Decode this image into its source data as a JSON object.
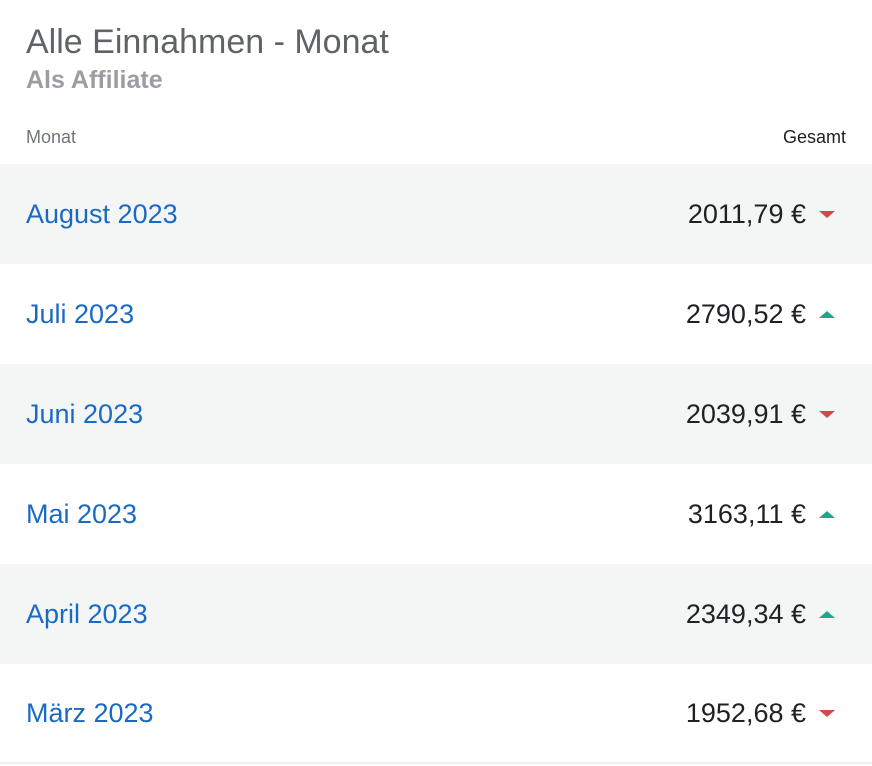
{
  "header": {
    "title": "Alle Einnahmen - Monat",
    "subtitle": "Als Affiliate"
  },
  "columns": {
    "month": "Monat",
    "total": "Gesamt"
  },
  "colors": {
    "link": "#1a6ac4",
    "trend_up": "#21a58d",
    "trend_down": "#d04a4a",
    "row_stripe": "#f4f6f5"
  },
  "rows": [
    {
      "month": "August 2023",
      "amount": "2011,79 €",
      "trend": "down",
      "trend_icon": "triangle-down-icon"
    },
    {
      "month": "Juli 2023",
      "amount": "2790,52 €",
      "trend": "up",
      "trend_icon": "triangle-up-icon"
    },
    {
      "month": "Juni 2023",
      "amount": "2039,91 €",
      "trend": "down",
      "trend_icon": "triangle-down-icon"
    },
    {
      "month": "Mai 2023",
      "amount": "3163,11 €",
      "trend": "up",
      "trend_icon": "triangle-up-icon"
    },
    {
      "month": "April 2023",
      "amount": "2349,34 €",
      "trend": "up",
      "trend_icon": "triangle-up-icon"
    },
    {
      "month": "März 2023",
      "amount": "1952,68 €",
      "trend": "down",
      "trend_icon": "triangle-down-icon"
    }
  ]
}
